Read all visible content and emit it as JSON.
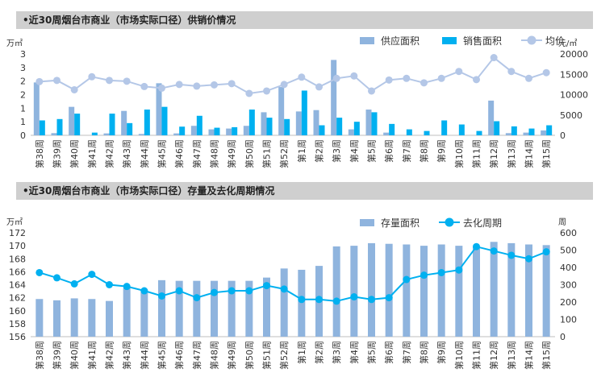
{
  "chart_data": [
    {
      "type": "bar",
      "title": "•近30周烟台市商业（市场实际口径）供销价情况",
      "y_unit": "万㎡",
      "y2_unit": "元/㎡",
      "y_tick_labels": [
        "0",
        "1",
        "1",
        "2",
        "2",
        "3",
        "3"
      ],
      "y_ticks": [
        0,
        0.5,
        1,
        1.5,
        2,
        2.5,
        3
      ],
      "ylim": [
        0,
        3
      ],
      "y2_ticks": [
        0,
        5000,
        10000,
        15000,
        20000
      ],
      "y2lim": [
        0,
        20000
      ],
      "categories": [
        "第38周",
        "第39周",
        "第40周",
        "第41周",
        "第42周",
        "第43周",
        "第44周",
        "第45周",
        "第46周",
        "第47周",
        "第48周",
        "第49周",
        "第50周",
        "第51周",
        "第52周",
        "第1周",
        "第2周",
        "第3周",
        "第4周",
        "第5周",
        "第6周",
        "第7周",
        "第8周",
        "第9周",
        "第10周",
        "第11周",
        "第12周",
        "第13周",
        "第14周",
        "第15周"
      ],
      "series": [
        {
          "name": "供应面积",
          "kind": "bar",
          "color": "#8fb4de",
          "values": [
            1.95,
            0.08,
            1.05,
            0.0,
            0.07,
            0.9,
            0.05,
            1.92,
            0.07,
            0.35,
            0.22,
            0.25,
            0.35,
            0.85,
            1.78,
            0.88,
            0.93,
            2.78,
            0.22,
            0.95,
            0.1,
            0.0,
            0.0,
            0.0,
            0.0,
            0.0,
            1.28,
            0.08,
            0.1,
            0.18
          ]
        },
        {
          "name": "销售面积",
          "kind": "bar",
          "color": "#00b0f0",
          "values": [
            0.55,
            0.6,
            0.8,
            0.1,
            0.8,
            0.45,
            0.95,
            1.05,
            0.32,
            0.72,
            0.28,
            0.3,
            0.95,
            0.65,
            0.6,
            1.65,
            0.37,
            0.65,
            0.5,
            0.85,
            0.42,
            0.22,
            0.16,
            0.55,
            0.4,
            0.16,
            0.52,
            0.33,
            0.25,
            0.37
          ]
        },
        {
          "name": "均价",
          "kind": "line",
          "axis": "y2",
          "color": "#b4c7e7",
          "values": [
            13200,
            13500,
            11200,
            14400,
            13500,
            13300,
            12000,
            11600,
            12500,
            12100,
            12400,
            12700,
            10300,
            10900,
            12500,
            14300,
            11900,
            14000,
            14600,
            10900,
            13600,
            14000,
            12900,
            14000,
            15700,
            13700,
            19100,
            15700,
            14000,
            15400
          ]
        }
      ]
    },
    {
      "type": "bar",
      "title": "•近30周烟台市商业（市场实际口径）存量及去化周期情况",
      "y_unit": "万㎡",
      "y2_unit": "周",
      "y_ticks": [
        156,
        158,
        160,
        162,
        164,
        166,
        168,
        170,
        172
      ],
      "ylim": [
        156,
        172
      ],
      "y2_ticks": [
        0,
        100,
        200,
        300,
        400,
        500,
        600
      ],
      "y2lim": [
        0,
        600
      ],
      "categories": [
        "第38周",
        "第39周",
        "第40周",
        "第41周",
        "第42周",
        "第43周",
        "第44周",
        "第45周",
        "第46周",
        "第47周",
        "第48周",
        "第49周",
        "第50周",
        "第51周",
        "第52周",
        "第1周",
        "第2周",
        "第3周",
        "第4周",
        "第5周",
        "第6周",
        "第7周",
        "第8周",
        "第9周",
        "第10周",
        "第11周",
        "第12周",
        "第13周",
        "第14周",
        "第15周"
      ],
      "series": [
        {
          "name": "存量面积",
          "kind": "bar",
          "color": "#8fb4de",
          "values": [
            161.8,
            161.6,
            161.9,
            161.8,
            161.5,
            163.5,
            163.0,
            164.7,
            164.6,
            164.6,
            164.6,
            164.6,
            164.6,
            165.1,
            166.5,
            166.3,
            166.9,
            169.9,
            170.0,
            170.4,
            170.3,
            170.2,
            170.0,
            170.2,
            170.0,
            169.9,
            170.6,
            170.4,
            170.2,
            170.1
          ]
        },
        {
          "name": "去化周期",
          "kind": "line",
          "axis": "y2",
          "color": "#00b0f0",
          "values": [
            370,
            340,
            305,
            360,
            300,
            290,
            265,
            235,
            265,
            225,
            255,
            265,
            265,
            295,
            275,
            215,
            215,
            205,
            230,
            215,
            225,
            330,
            355,
            370,
            385,
            520,
            495,
            470,
            450,
            490
          ]
        }
      ]
    }
  ]
}
